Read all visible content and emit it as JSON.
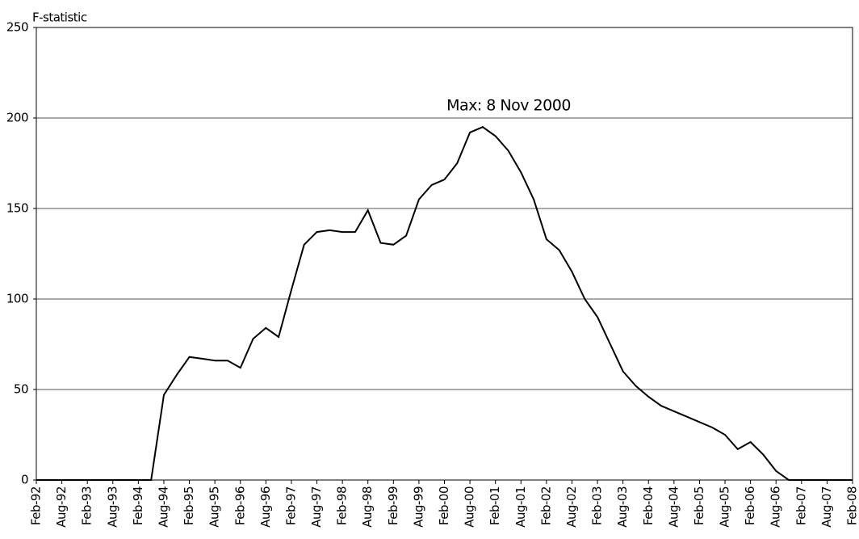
{
  "chart_data": {
    "type": "line",
    "y_label": "F-statistic",
    "annotation": "Max: 8 Nov 2000",
    "categories": [
      "Feb-92",
      null,
      "Aug-92",
      null,
      "Feb-93",
      null,
      "Aug-93",
      null,
      "Feb-94",
      null,
      "Aug-94",
      null,
      "Feb-95",
      null,
      "Aug-95",
      null,
      "Feb-96",
      null,
      "Aug-96",
      null,
      "Feb-97",
      null,
      "Aug-97",
      null,
      "Feb-98",
      null,
      "Aug-98",
      null,
      "Feb-99",
      null,
      "Aug-99",
      null,
      "Feb-00",
      null,
      "Aug-00",
      null,
      "Feb-01",
      null,
      "Aug-01",
      null,
      "Feb-02",
      null,
      "Aug-02",
      null,
      "Feb-03",
      null,
      "Aug-03",
      null,
      "Feb-04",
      null,
      "Aug-04",
      null,
      "Feb-05",
      null,
      "Aug-05",
      null,
      "Feb-06",
      null,
      "Aug-06",
      null,
      "Feb-07",
      null,
      "Aug-07",
      null,
      "Feb-08"
    ],
    "series": [
      {
        "name": "F-statistic",
        "color": "#000000",
        "values": [
          0,
          0,
          0,
          0,
          0,
          0,
          0,
          0,
          0,
          0,
          47,
          58,
          68,
          67,
          66,
          66,
          62,
          78,
          84,
          79,
          105,
          130,
          137,
          138,
          137,
          137,
          149,
          131,
          130,
          135,
          155,
          163,
          166,
          175,
          192,
          195,
          190,
          182,
          170,
          155,
          133,
          127,
          115,
          100,
          90,
          75,
          60,
          52,
          46,
          41,
          38,
          35,
          32,
          29,
          25,
          17,
          21,
          14,
          5,
          0,
          0,
          0,
          0,
          0,
          0
        ]
      }
    ],
    "ylim": [
      0,
      250
    ],
    "yticks": [
      0,
      50,
      100,
      150,
      200,
      250
    ],
    "grid": true
  }
}
